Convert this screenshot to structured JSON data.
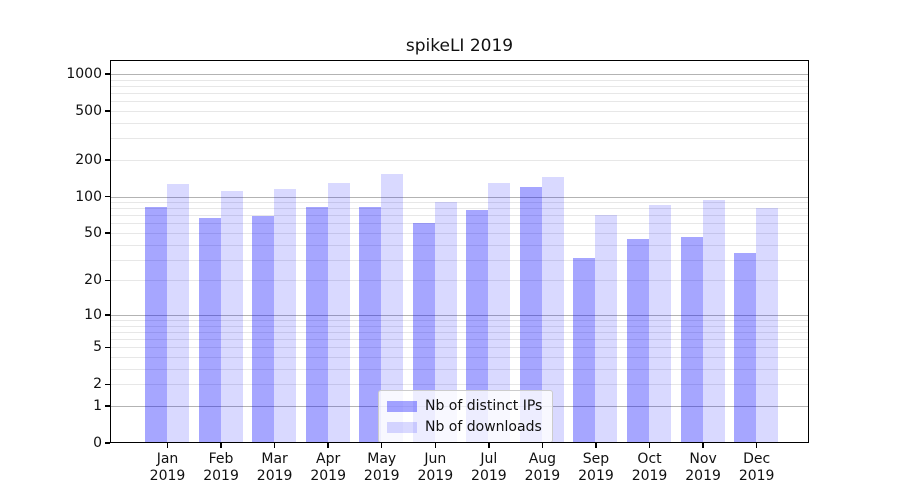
{
  "title": "spikeLI 2019",
  "legend": {
    "items": [
      {
        "name": "distinct-ips",
        "label": "Nb of distinct IPs",
        "color": "rgba(0,0,255,0.35)"
      },
      {
        "name": "downloads",
        "label": "Nb of downloads",
        "color": "rgba(0,0,255,0.15)"
      }
    ]
  },
  "y_axis": {
    "scale": "symlog ln(1+v)",
    "top_value": 1302,
    "ticks": [
      {
        "value": 1000,
        "label": "1000"
      },
      {
        "value": 500,
        "label": "500"
      },
      {
        "value": 200,
        "label": "200"
      },
      {
        "value": 100,
        "label": "100"
      },
      {
        "value": 50,
        "label": "50"
      },
      {
        "value": 20,
        "label": "20"
      },
      {
        "value": 10,
        "label": "10"
      },
      {
        "value": 5,
        "label": "5"
      },
      {
        "value": 2,
        "label": "2"
      },
      {
        "value": 1,
        "label": "1"
      },
      {
        "value": 0,
        "label": "0"
      }
    ],
    "major_grid": [
      1,
      10,
      100,
      1000
    ],
    "minor_grid": [
      2,
      3,
      4,
      5,
      6,
      7,
      8,
      9,
      20,
      30,
      40,
      50,
      60,
      70,
      80,
      90,
      200,
      300,
      400,
      500,
      600,
      700,
      800,
      900
    ]
  },
  "x_axis": {
    "categories": [
      {
        "month": "Jan",
        "year": "2019"
      },
      {
        "month": "Feb",
        "year": "2019"
      },
      {
        "month": "Mar",
        "year": "2019"
      },
      {
        "month": "Apr",
        "year": "2019"
      },
      {
        "month": "May",
        "year": "2019"
      },
      {
        "month": "Jun",
        "year": "2019"
      },
      {
        "month": "Jul",
        "year": "2019"
      },
      {
        "month": "Aug",
        "year": "2019"
      },
      {
        "month": "Sep",
        "year": "2019"
      },
      {
        "month": "Oct",
        "year": "2019"
      },
      {
        "month": "Nov",
        "year": "2019"
      },
      {
        "month": "Dec",
        "year": "2019"
      }
    ]
  },
  "chart_data": {
    "type": "bar",
    "title": "spikeLI 2019",
    "categories": [
      "Jan 2019",
      "Feb 2019",
      "Mar 2019",
      "Apr 2019",
      "May 2019",
      "Jun 2019",
      "Jul 2019",
      "Aug 2019",
      "Sep 2019",
      "Oct 2019",
      "Nov 2019",
      "Dec 2019"
    ],
    "series": [
      {
        "name": "Nb of distinct IPs",
        "color": "rgba(0,0,255,0.35)",
        "values": [
          82,
          67,
          69,
          82,
          82,
          60,
          78,
          120,
          31,
          45,
          46,
          34
        ]
      },
      {
        "name": "Nb of downloads",
        "color": "rgba(0,0,255,0.15)",
        "values": [
          126,
          112,
          116,
          128,
          152,
          91,
          130,
          146,
          70,
          85,
          93,
          80
        ]
      }
    ],
    "xlabel": "",
    "ylabel": "",
    "yscale": "symlog",
    "ylim": [
      0,
      1302
    ],
    "grid": true,
    "legend_position": "lower center"
  },
  "colors": {
    "major_grid": "#b3b3b3",
    "minor_grid": "#e7e7e7",
    "spine": "#000000"
  }
}
